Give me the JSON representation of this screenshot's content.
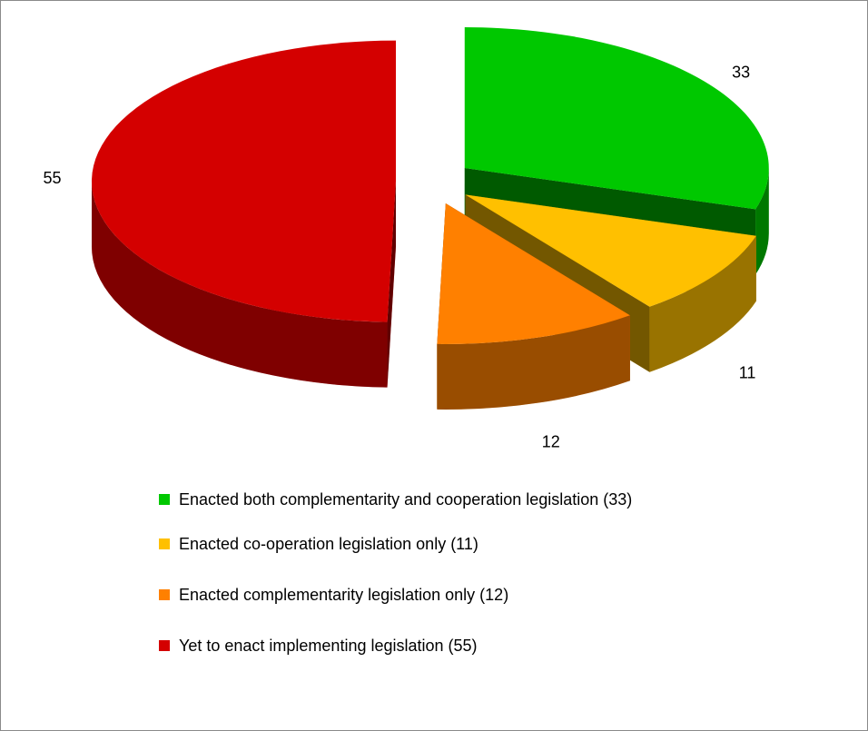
{
  "chart_data": {
    "type": "pie",
    "categories": [
      "Enacted both complementarity and cooperation legislation (33)",
      "Enacted co-operation legislation only (11)",
      "Enacted complementarity legislation only (12)",
      "Yet to enact implementing legislation (55)"
    ],
    "values": [
      33,
      11,
      12,
      55
    ],
    "colors": [
      "#00c800",
      "#ffc000",
      "#ff8000",
      "#d40000"
    ],
    "legend": "bottom"
  }
}
